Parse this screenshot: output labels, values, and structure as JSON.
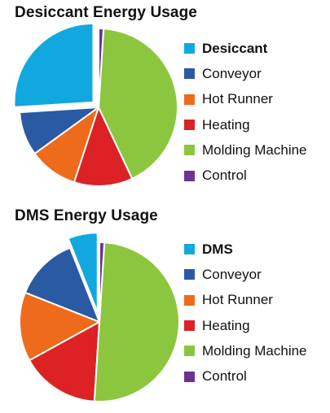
{
  "chart_data": [
    {
      "type": "pie",
      "title": "Desiccant Energy Usage",
      "legend_position": "right",
      "series": [
        {
          "name": "Desiccant",
          "value": 26,
          "color": "#11a8e0",
          "exploded": true
        },
        {
          "name": "Conveyor",
          "value": 9,
          "color": "#2a5aa3",
          "exploded": false
        },
        {
          "name": "Hot Runner",
          "value": 10,
          "color": "#ee6b1b",
          "exploded": false
        },
        {
          "name": "Heating",
          "value": 12,
          "color": "#dc2224",
          "exploded": false
        },
        {
          "name": "Molding Machine",
          "value": 42,
          "color": "#8cc63e",
          "exploded": false
        },
        {
          "name": "Control",
          "value": 1,
          "color": "#6b3393",
          "exploded": false
        }
      ]
    },
    {
      "type": "pie",
      "title": "DMS Energy Usage",
      "legend_position": "right",
      "series": [
        {
          "name": "DMS",
          "value": 6,
          "color": "#11a8e0",
          "exploded": true
        },
        {
          "name": "Conveyor",
          "value": 13,
          "color": "#2a5aa3",
          "exploded": false
        },
        {
          "name": "Hot Runner",
          "value": 14,
          "color": "#ee6b1b",
          "exploded": false
        },
        {
          "name": "Heating",
          "value": 16,
          "color": "#dc2224",
          "exploded": false
        },
        {
          "name": "Molding Machine",
          "value": 50,
          "color": "#8cc63e",
          "exploded": false
        },
        {
          "name": "Control",
          "value": 1,
          "color": "#6b3393",
          "exploded": false
        }
      ]
    }
  ]
}
